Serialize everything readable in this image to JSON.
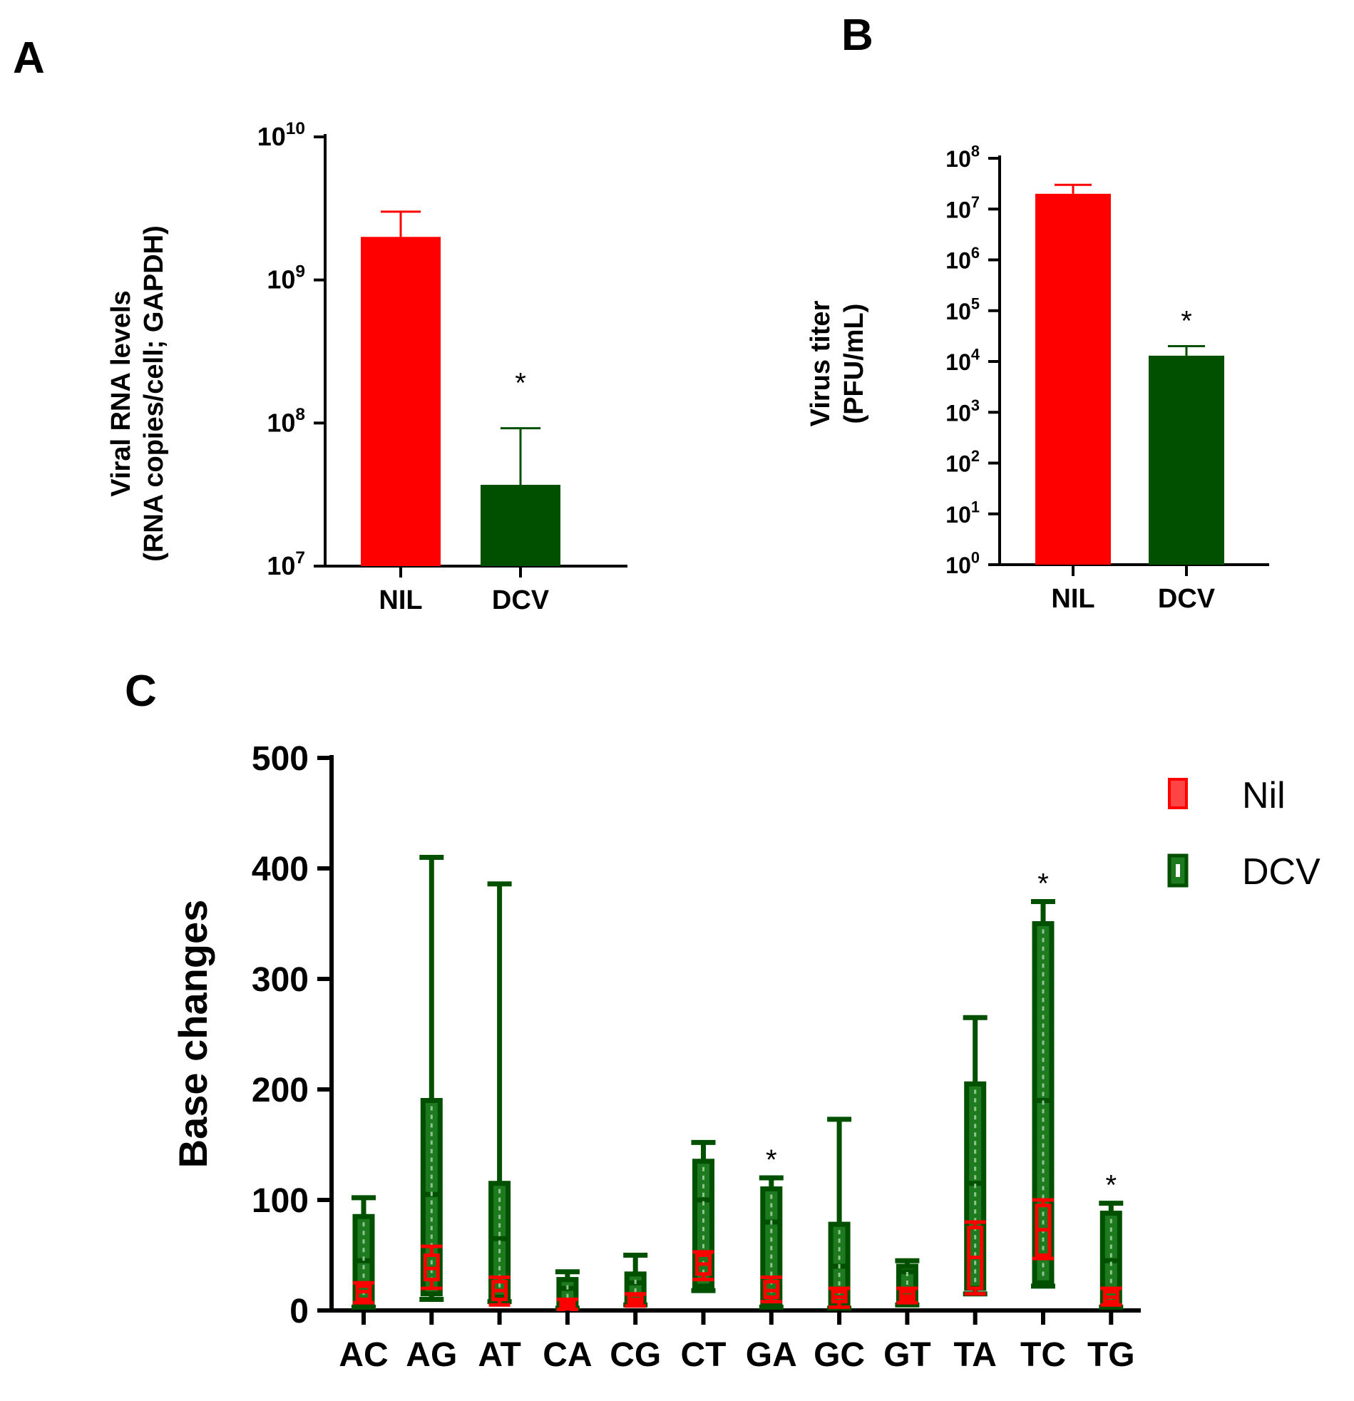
{
  "colors": {
    "nil": "#ff0000",
    "dcv": "#005000",
    "dcv_box": "#1e7a1e",
    "axis": "#000000"
  },
  "chart_data": [
    {
      "panel": "A",
      "type": "bar",
      "scale": "log",
      "ylabel_line1": "Viral RNA levels",
      "ylabel_line2": "(RNA copies/cell; GAPDH)",
      "ylim": [
        10000000,
        10000000000
      ],
      "ticks": [
        {
          "base": "10",
          "exp": "7",
          "value": 10000000
        },
        {
          "base": "10",
          "exp": "8",
          "value": 100000000
        },
        {
          "base": "10",
          "exp": "9",
          "value": 1000000000
        },
        {
          "base": "10",
          "exp": "10",
          "value": 10000000000
        }
      ],
      "categories": [
        "NIL",
        "DCV"
      ],
      "values": [
        2000000000,
        37000000
      ],
      "error_upper": [
        3000000000,
        92000000
      ],
      "significance": [
        "",
        "*"
      ]
    },
    {
      "panel": "B",
      "type": "bar",
      "scale": "log",
      "ylabel_line1": "Virus titer",
      "ylabel_line2": "(PFU/mL)",
      "ylim": [
        1,
        100000000
      ],
      "ticks": [
        {
          "base": "10",
          "exp": "0",
          "value": 1
        },
        {
          "base": "10",
          "exp": "1",
          "value": 10
        },
        {
          "base": "10",
          "exp": "2",
          "value": 100
        },
        {
          "base": "10",
          "exp": "3",
          "value": 1000
        },
        {
          "base": "10",
          "exp": "4",
          "value": 10000
        },
        {
          "base": "10",
          "exp": "5",
          "value": 100000
        },
        {
          "base": "10",
          "exp": "6",
          "value": 1000000
        },
        {
          "base": "10",
          "exp": "7",
          "value": 10000000
        },
        {
          "base": "10",
          "exp": "8",
          "value": 100000000
        }
      ],
      "categories": [
        "NIL",
        "DCV"
      ],
      "values": [
        20000000,
        13000
      ],
      "error_upper": [
        30000000,
        20000
      ],
      "significance": [
        "",
        "*"
      ]
    },
    {
      "panel": "C",
      "type": "boxplot",
      "ylabel": "Base changes",
      "ylim": [
        0,
        500
      ],
      "yticks": [
        0,
        100,
        200,
        300,
        400,
        500
      ],
      "categories": [
        "AC",
        "AG",
        "AT",
        "CA",
        "CG",
        "CT",
        "GA",
        "GC",
        "GT",
        "TA",
        "TC",
        "TG"
      ],
      "series": [
        {
          "name": "Nil",
          "min": [
            7,
            20,
            5,
            1,
            4,
            28,
            8,
            3,
            7,
            15,
            47,
            5
          ],
          "q1": [
            10,
            28,
            10,
            3,
            7,
            33,
            12,
            8,
            10,
            20,
            50,
            8
          ],
          "median": [
            17,
            38,
            18,
            6,
            10,
            42,
            18,
            12,
            13,
            48,
            73,
            12
          ],
          "q3": [
            22,
            50,
            26,
            8,
            14,
            50,
            26,
            17,
            17,
            75,
            95,
            17
          ],
          "max": [
            25,
            58,
            30,
            10,
            15,
            53,
            30,
            20,
            20,
            80,
            100,
            20
          ]
        },
        {
          "name": "DCV",
          "min": [
            3,
            10,
            8,
            2,
            5,
            18,
            3,
            2,
            5,
            15,
            22,
            3
          ],
          "q1": [
            5,
            15,
            12,
            5,
            8,
            22,
            7,
            5,
            8,
            20,
            25,
            5
          ],
          "median": [
            45,
            105,
            65,
            20,
            25,
            100,
            80,
            40,
            35,
            115,
            190,
            45
          ],
          "q3": [
            85,
            190,
            115,
            28,
            33,
            135,
            110,
            78,
            40,
            205,
            350,
            88
          ],
          "max": [
            102,
            410,
            386,
            35,
            50,
            152,
            120,
            173,
            45,
            265,
            370,
            97
          ]
        }
      ],
      "significance": [
        "",
        "",
        "",
        "",
        "",
        "",
        "*",
        "",
        "",
        "",
        "*",
        "*"
      ],
      "legend": {
        "position": "top-right",
        "entries": [
          "Nil",
          "DCV"
        ]
      }
    }
  ],
  "panel_labels": [
    "A",
    "B",
    "C"
  ]
}
